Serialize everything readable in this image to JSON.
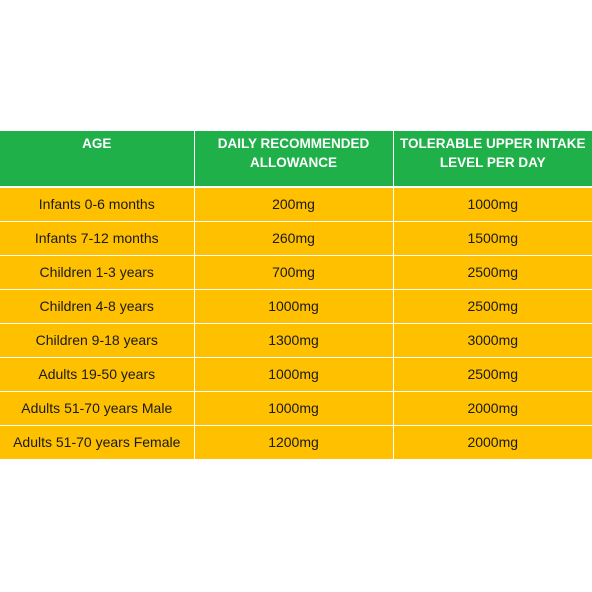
{
  "colors": {
    "header_bg": "#1fb04a",
    "row_bg": "#ffc000",
    "header_text": "#ffffff"
  },
  "table": {
    "headers": [
      "AGE",
      "DAILY RECOMMENDED ALLOWANCE",
      "TOLERABLE UPPER INTAKE LEVEL PER DAY"
    ],
    "rows": [
      [
        "Infants 0-6 months",
        "200mg",
        "1000mg"
      ],
      [
        "Infants 7-12 months",
        "260mg",
        "1500mg"
      ],
      [
        "Children 1-3 years",
        "700mg",
        "2500mg"
      ],
      [
        "Children 4-8 years",
        "1000mg",
        "2500mg"
      ],
      [
        "Children 9-18 years",
        "1300mg",
        "3000mg"
      ],
      [
        "Adults 19-50 years",
        "1000mg",
        "2500mg"
      ],
      [
        "Adults 51-70 years Male",
        "1000mg",
        "2000mg"
      ],
      [
        "Adults 51-70 years Female",
        "1200mg",
        "2000mg"
      ]
    ]
  }
}
